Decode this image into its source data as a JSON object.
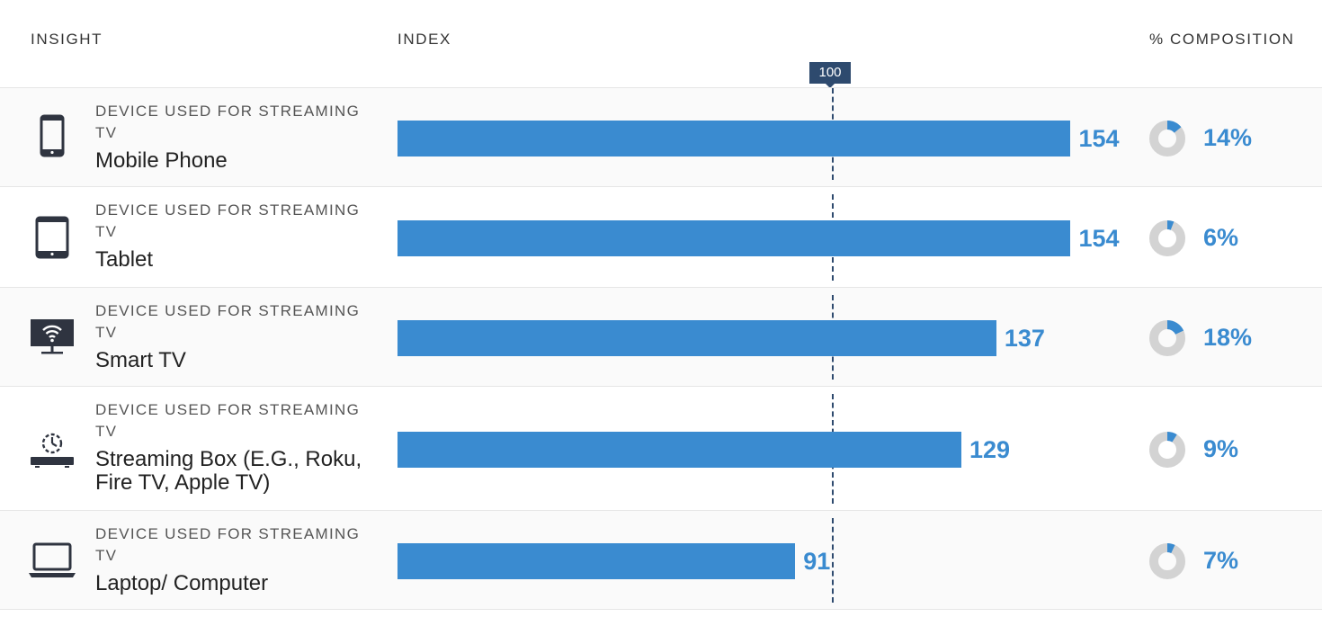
{
  "headers": {
    "insight": "INSIGHT",
    "index": "INDEX",
    "composition": "% COMPOSITION"
  },
  "reference_marker": "100",
  "colors": {
    "bar": "#3a8bd0",
    "reference": "#2e4a6e",
    "donut_track": "#d3d3d3"
  },
  "chart_data": {
    "type": "bar",
    "orientation": "horizontal",
    "reference_value": 100,
    "categories": [
      "Mobile Phone",
      "Tablet",
      "Smart TV",
      "Streaming Box (E.G., Roku, Fire TV, Apple TV)",
      "Laptop/ Computer"
    ],
    "series": [
      {
        "name": "INDEX",
        "values": [
          154,
          154,
          137,
          129,
          91
        ]
      },
      {
        "name": "% COMPOSITION",
        "values": [
          14,
          6,
          18,
          9,
          7
        ]
      }
    ]
  },
  "rows": [
    {
      "category": "DEVICE USED FOR STREAMING TV",
      "label": "Mobile Phone",
      "icon": "mobile-phone-icon",
      "index": "154",
      "composition": "14%"
    },
    {
      "category": "DEVICE USED FOR STREAMING TV",
      "label": "Tablet",
      "icon": "tablet-icon",
      "index": "154",
      "composition": "6%"
    },
    {
      "category": "DEVICE USED FOR STREAMING TV",
      "label": "Smart TV",
      "icon": "smart-tv-icon",
      "index": "137",
      "composition": "18%"
    },
    {
      "category": "DEVICE USED FOR STREAMING TV",
      "label": "Streaming Box (E.G., Roku, Fire TV, Apple TV)",
      "icon": "streaming-box-icon",
      "index": "129",
      "composition": "9%"
    },
    {
      "category": "DEVICE USED FOR STREAMING TV",
      "label": "Laptop/ Computer",
      "icon": "laptop-icon",
      "index": "91",
      "composition": "7%"
    }
  ]
}
